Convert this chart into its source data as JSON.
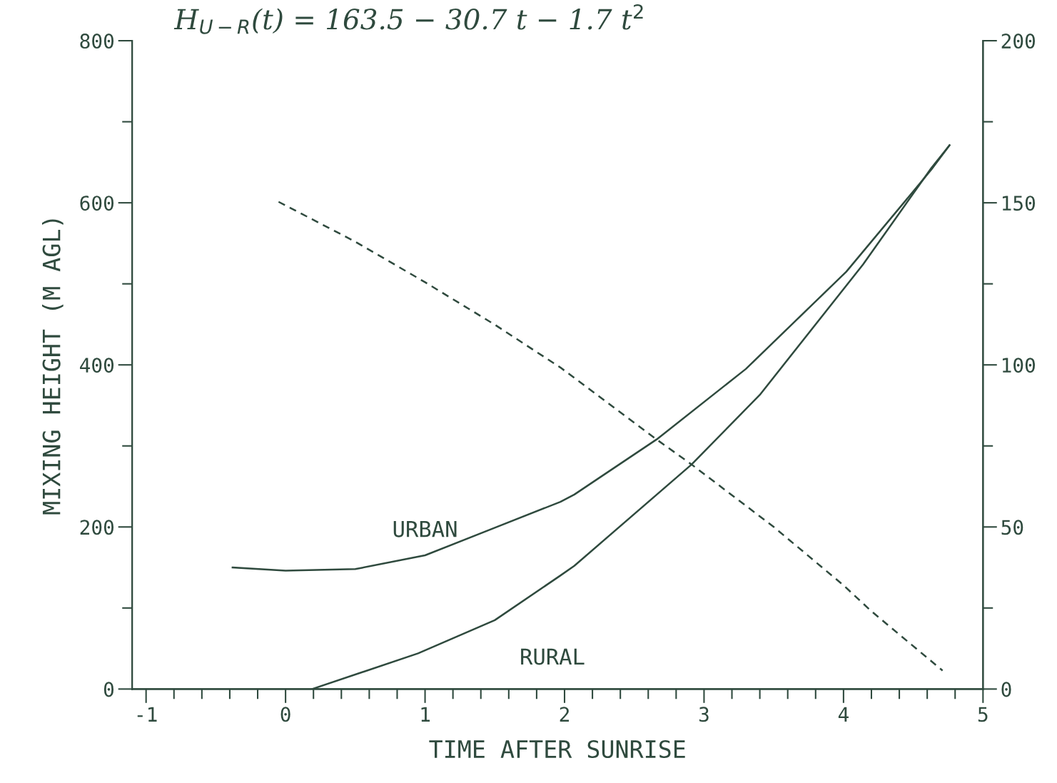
{
  "chart_data": {
    "type": "line",
    "xlabel": "TIME AFTER SUNRISE",
    "ylabel": "MIXING HEIGHT (M AGL)",
    "annotations": [
      "H$_{U−R}$(t) = 163.5 − 30.7 t − 1.7 t$^{2}$"
    ],
    "xlim": [
      -1.1,
      5.0
    ],
    "xticks": [
      -1,
      {
        "value": -0.8,
        "label": null
      },
      {
        "value": -0.6,
        "label": null
      },
      {
        "value": -0.4,
        "label": null
      },
      {
        "value": -0.2,
        "label": null
      },
      0,
      {
        "value": 0.2,
        "label": null
      },
      {
        "value": 0.4,
        "label": null
      },
      {
        "value": 0.6,
        "label": null
      },
      {
        "value": 0.8,
        "label": null
      },
      1,
      {
        "value": 1.2,
        "label": null
      },
      {
        "value": 1.4,
        "label": null
      },
      {
        "value": 1.6,
        "label": null
      },
      {
        "value": 1.8,
        "label": null
      },
      2,
      {
        "value": 2.2,
        "label": null
      },
      {
        "value": 2.4,
        "label": null
      },
      {
        "value": 2.6,
        "label": null
      },
      {
        "value": 2.8,
        "label": null
      },
      3,
      {
        "value": 3.2,
        "label": null
      },
      {
        "value": 3.4,
        "label": null
      },
      {
        "value": 3.6,
        "label": null
      },
      {
        "value": 3.8,
        "label": null
      },
      4,
      {
        "value": 4.2,
        "label": null
      },
      {
        "value": 4.4,
        "label": null
      },
      {
        "value": 4.6,
        "label": null
      },
      {
        "value": 4.8,
        "label": null
      },
      5
    ],
    "ylim": [
      0,
      800
    ],
    "yticks": [
      0,
      {
        "value": 100,
        "label": null
      },
      200,
      {
        "value": 300,
        "label": null
      },
      400,
      {
        "value": 500,
        "label": null
      },
      600,
      {
        "value": 700,
        "label": null
      },
      800
    ],
    "y2lim": [
      0,
      200
    ],
    "y2ticks": [
      0,
      {
        "value": 25,
        "label": null
      },
      50,
      {
        "value": 75,
        "label": null
      },
      100,
      {
        "value": 125,
        "label": null
      },
      150,
      {
        "value": 175,
        "label": null
      },
      200
    ],
    "grid": false,
    "legend": false,
    "marker": "none",
    "series": [
      {
        "name": "URBAN",
        "color": "#2f4a3e",
        "line_style": "solid",
        "x": [
          -0.38,
          0.0,
          0.5,
          1.0,
          1.5,
          1.97,
          2.07,
          2.66,
          3.3,
          4.02,
          4.63,
          4.76
        ],
        "values": [
          150,
          146,
          148,
          165,
          199,
          231,
          240,
          308,
          395,
          515,
          641,
          671
        ]
      },
      {
        "name": "RURAL",
        "color": "#2f4a3e",
        "line_style": "solid",
        "x": [
          0.19,
          0.95,
          1.5,
          1.97,
          2.07,
          2.91,
          3.4,
          4.14,
          4.63,
          4.76
        ],
        "values": [
          0,
          44,
          85,
          140,
          152,
          277,
          363,
          524,
          643,
          671
        ]
      },
      {
        "color": "#2f4a3e",
        "line_style": "dashed",
        "axis": "y2",
        "x": [
          -0.05,
          0.5,
          1.0,
          1.5,
          1.97,
          2.66,
          2.91,
          3.5,
          4.0,
          4.2,
          4.71
        ],
        "values": [
          150.3,
          138,
          125.5,
          112.4,
          99.2,
          77,
          69.3,
          50,
          32,
          24,
          5.7
        ]
      }
    ]
  }
}
